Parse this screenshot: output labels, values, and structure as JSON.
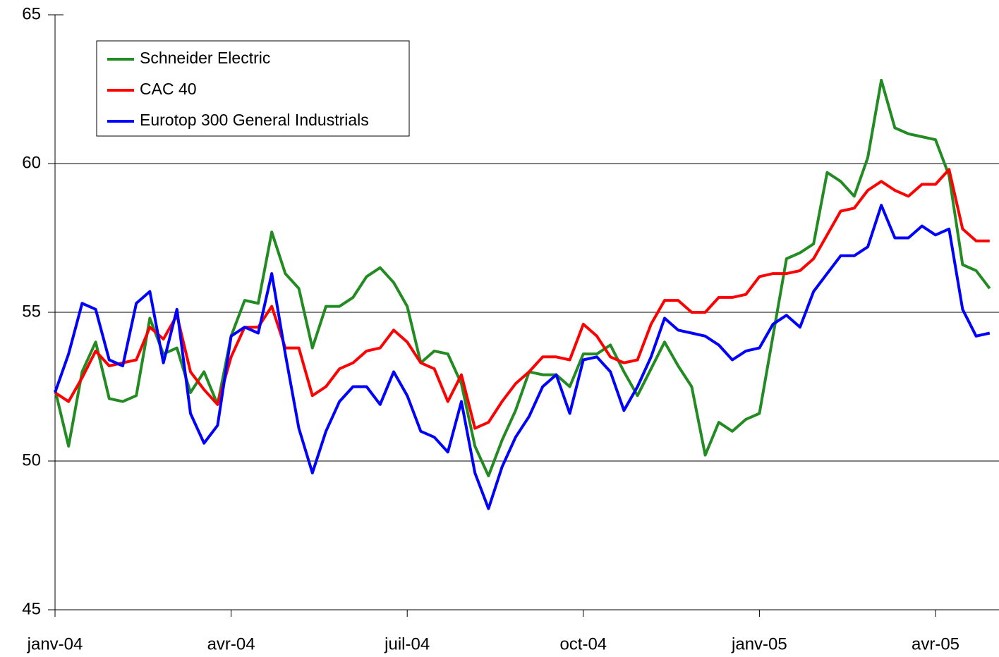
{
  "chart_data": {
    "type": "line",
    "categories": [
      "janv-04",
      null,
      null,
      null,
      null,
      null,
      null,
      null,
      null,
      null,
      null,
      null,
      null,
      "avr-04",
      null,
      null,
      null,
      null,
      null,
      null,
      null,
      null,
      null,
      null,
      null,
      null,
      "juil-04",
      null,
      null,
      null,
      null,
      null,
      null,
      null,
      null,
      null,
      null,
      null,
      null,
      "oct-04",
      null,
      null,
      null,
      null,
      null,
      null,
      null,
      null,
      null,
      null,
      null,
      null,
      "janv-05",
      null,
      null,
      null,
      null,
      null,
      null,
      null,
      null,
      null,
      null,
      null,
      null,
      "avr-05",
      null,
      null,
      null,
      null
    ],
    "series": [
      {
        "name": "Schneider Electric",
        "color": "#228b22",
        "values": [
          52.4,
          50.5,
          53,
          54,
          52.1,
          52,
          52.2,
          54.8,
          53.6,
          53.8,
          52.3,
          53,
          51.9,
          54.2,
          55.4,
          55.3,
          57.7,
          56.3,
          55.8,
          53.8,
          55.2,
          55.2,
          55.5,
          56.2,
          56.5,
          56,
          55.2,
          53.3,
          53.7,
          53.6,
          52.6,
          50.5,
          49.5,
          50.7,
          51.7,
          53,
          52.9,
          52.9,
          52.5,
          53.6,
          53.6,
          53.9,
          53,
          52.2,
          53.1,
          54,
          53.2,
          52.5,
          50.2,
          51.3,
          51,
          51.4,
          51.6,
          54.2,
          56.8,
          57,
          57.3,
          59.7,
          59.4,
          58.9,
          60.2,
          62.8,
          61.2,
          61,
          60.9,
          60.8,
          59.6,
          56.6,
          56.4,
          55.8
        ]
      },
      {
        "name": "CAC 40",
        "color": "#ff0000",
        "values": [
          52.3,
          52,
          52.8,
          53.7,
          53.2,
          53.3,
          53.4,
          54.5,
          54.1,
          54.9,
          53,
          52.4,
          51.9,
          53.5,
          54.5,
          54.5,
          55.2,
          53.8,
          53.8,
          52.2,
          52.5,
          53.1,
          53.3,
          53.7,
          53.8,
          54.4,
          54,
          53.3,
          53.1,
          52,
          52.9,
          51.1,
          51.3,
          52,
          52.6,
          53,
          53.5,
          53.5,
          53.4,
          54.6,
          54.2,
          53.5,
          53.3,
          53.4,
          54.6,
          55.4,
          55.4,
          55,
          55,
          55.5,
          55.5,
          55.6,
          56.2,
          56.3,
          56.3,
          56.4,
          56.8,
          57.6,
          58.4,
          58.5,
          59.1,
          59.4,
          59.1,
          58.9,
          59.3,
          59.3,
          59.8,
          57.8,
          57.4,
          57.4
        ]
      },
      {
        "name": "Eurotop 300 General Industrials",
        "color": "#0000ff",
        "values": [
          52.3,
          53.6,
          55.3,
          55.1,
          53.4,
          53.2,
          55.3,
          55.7,
          53.3,
          55.1,
          51.6,
          50.6,
          51.2,
          54.2,
          54.5,
          54.3,
          56.3,
          53.6,
          51.1,
          49.6,
          51,
          52,
          52.5,
          52.5,
          51.9,
          53,
          52.2,
          51,
          50.8,
          50.3,
          52,
          49.6,
          48.4,
          49.8,
          50.8,
          51.5,
          52.5,
          52.9,
          51.6,
          53.4,
          53.5,
          53,
          51.7,
          52.5,
          53.5,
          54.8,
          54.4,
          54.3,
          54.2,
          53.9,
          53.4,
          53.7,
          53.8,
          54.6,
          54.9,
          54.5,
          55.7,
          56.3,
          56.9,
          56.9,
          57.2,
          58.6,
          57.5,
          57.5,
          57.9,
          57.6,
          57.8,
          55.1,
          54.2,
          54.3
        ]
      }
    ],
    "ylim": [
      45,
      65
    ],
    "yticks": [
      45,
      50,
      55,
      60,
      65
    ],
    "grid": true,
    "legend": "top-left"
  }
}
